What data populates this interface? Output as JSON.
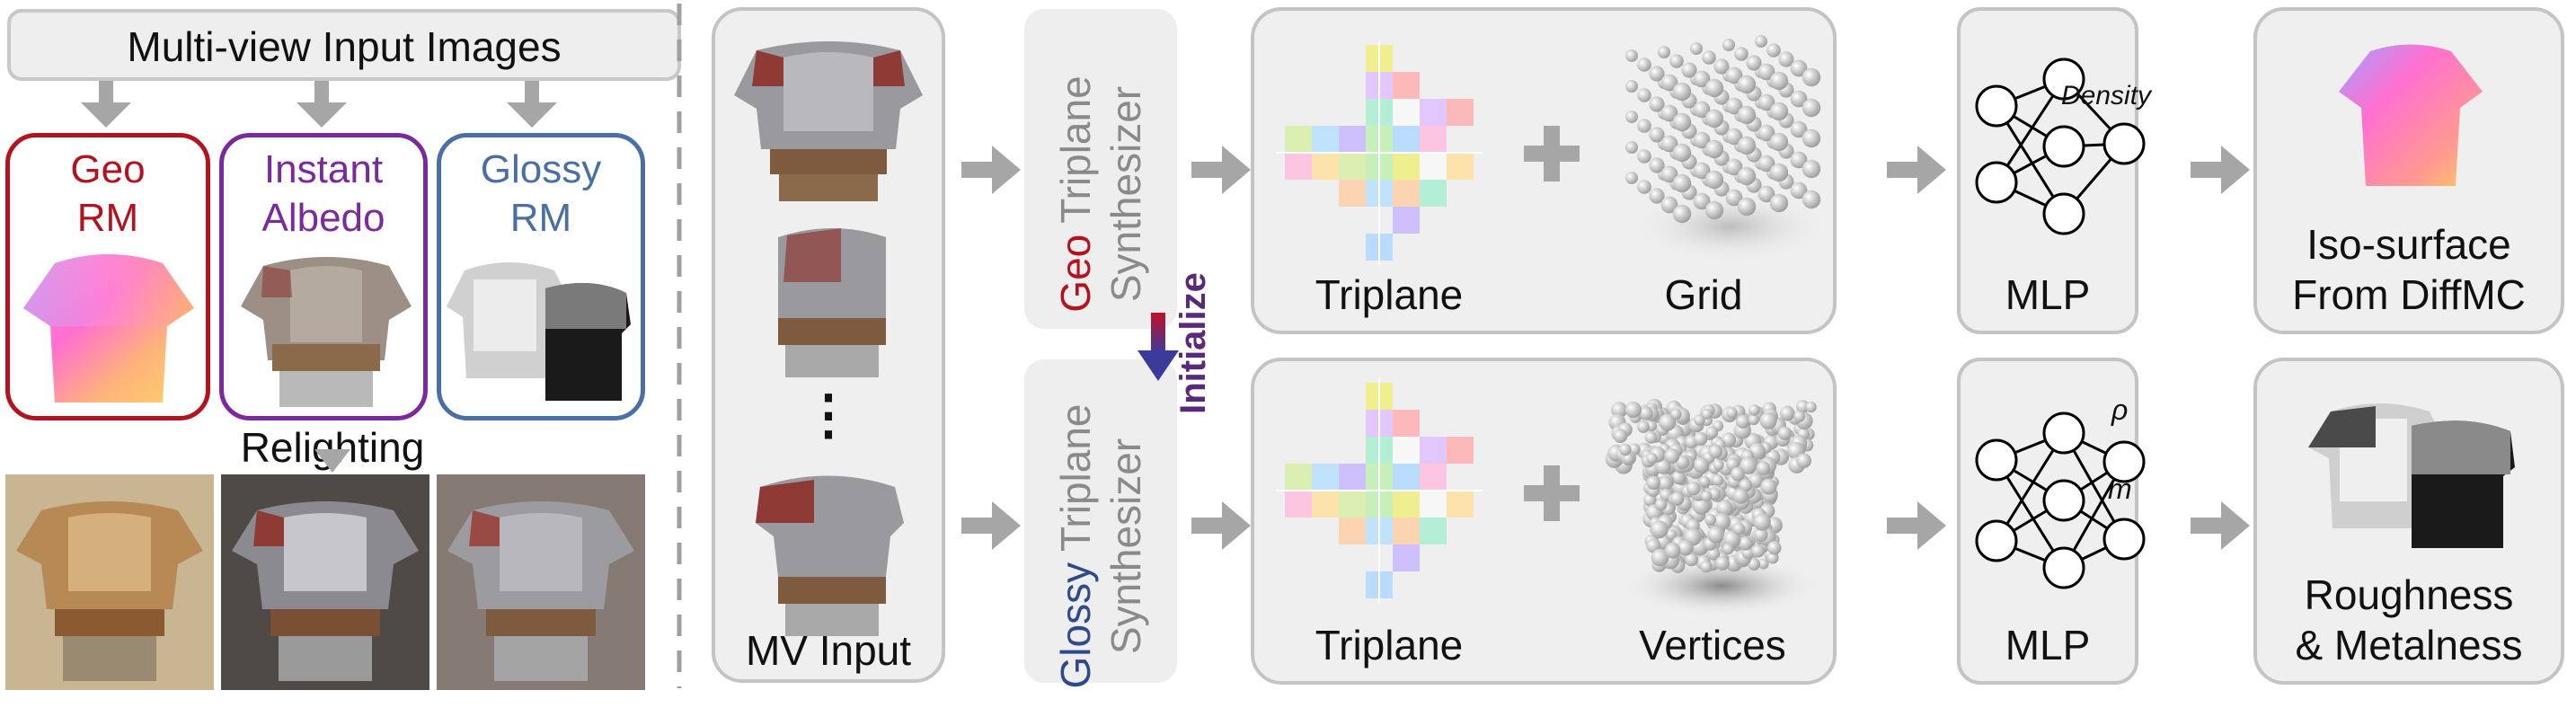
{
  "left_panel": {
    "title": "Multi-view Input Images",
    "models": [
      {
        "line1": "Geo",
        "line2": "RM",
        "color": "#b3121f"
      },
      {
        "line1": "Instant",
        "line2": "Albedo",
        "color": "#7a2a9c"
      },
      {
        "line1": "Glossy",
        "line2": "RM",
        "color": "#4a6fa5"
      }
    ],
    "relighting_label": "Relighting"
  },
  "mv_input_label": "MV Input",
  "ellipsis": "⋮",
  "synthesizers": {
    "geo": {
      "prefix": "Geo",
      "word1": "Triplane",
      "word2": "Synthesizer",
      "color": "#b3121f"
    },
    "glossy": {
      "prefix": "Glossy",
      "word1": "Triplane",
      "word2": "Synthesizer",
      "color": "#2e4a8a"
    },
    "initialize_label": "Initialize"
  },
  "top_row": {
    "triplane_label": "Triplane",
    "grid_label": "Grid",
    "mlp_label": "MLP",
    "mlp_output": "Density",
    "result_line1": "Iso-surface",
    "result_line2": "From DiffMC"
  },
  "bottom_row": {
    "triplane_label": "Triplane",
    "vertices_label": "Vertices",
    "mlp_label": "MLP",
    "mlp_output1": "ρ",
    "mlp_output2": "m",
    "result_line1": "Roughness",
    "result_line2": "& Metalness"
  },
  "colors": {
    "arrow": "#a6a6a6",
    "box_border": "#c4c4c4",
    "box_fill": "#efefef",
    "dashed_divider": "#a0a0a0"
  }
}
